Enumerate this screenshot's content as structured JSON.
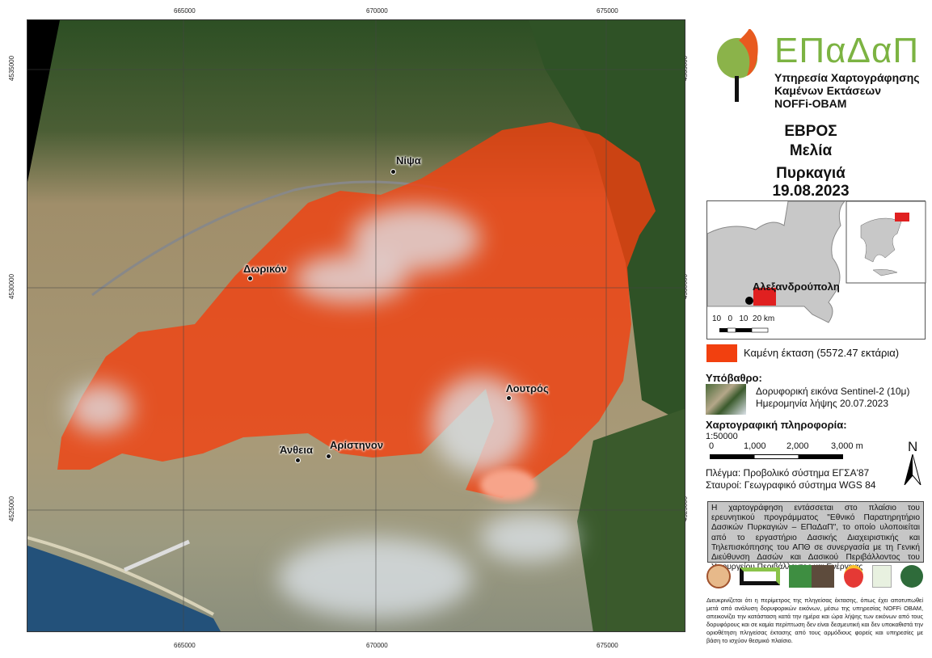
{
  "logo": {
    "name": "ΕΠαΔαΠ",
    "subtitle_lines": [
      "Υπηρεσία Χαρτογράφησης",
      "Καμένων Εκτάσεων",
      "NOFFi-OBAM"
    ]
  },
  "header": {
    "region": "ΕΒΡΟΣ",
    "area": "Μελία",
    "event": "Πυρκαγιά",
    "date": "19.08.2023"
  },
  "locator": {
    "city": "Αλεξανδρούπολη",
    "scale_labels": "10   0   10  20 km"
  },
  "legend": {
    "burned_label": "Καμένη έκταση (5572.47 εκτάρια)",
    "burned_color": "#f2400f"
  },
  "basemap": {
    "heading": "Υπόβαθρο:",
    "line1": "Δορυφορική εικόνα Sentinel-2 (10μ)",
    "line2": "Ημερομηνία λήψης 20.07.2023"
  },
  "carto": {
    "heading": "Χαρτογραφική πληροφορία:",
    "scale": "1:50000",
    "scalebar_labels": [
      "0",
      "1,000",
      "2,000",
      "3,000 m"
    ],
    "north": "N",
    "grid": "Πλέγμα: Προβολικό σύστημα ΕΓΣΑ'87",
    "graticule": "Σταυροί: Γεωγραφικό σύστημα WGS 84"
  },
  "note": "Η χαρτογράφηση εντάσσεται στο πλαίσιο του ερευνητικού προγράμματος \"Εθνικό Παρατηρητήριο Δασικών Πυρκαγιών – ΕΠαΔαΠ\", το οποίο υλοποιείται από το εργαστήριο Δασικής Διαχειριστικής και Τηλεπισκόπησης του ΑΠΘ σε συνεργασία με τη Γενική Διεύθυνση Δασών και Δασικού Περιβάλλοντος του Υπουργείου Περιβάλλοντος και Ενέργειας",
  "disclaimer": "Διευκρινίζεται ότι η περίμετρος της πληγείσας έκτασης, όπως έχει αποτυπωθεί μετά από ανάλυση δορυφορικών εικόνων, μέσω της υπηρεσίας NOFFi OBAM, απεικονίζει την κατάσταση κατά την ημέρα και ώρα λήψης των εικόνων από τους δορυφόρους και σε καμία περίπτωση δεν είναι δεσμευτική και δεν υποκαθιστά την οριοθέτηση πληγείσας έκτασης από τους αρμόδιους φορείς και υπηρεσίες με βάση το ισχύον θεσμικό πλαίσιο.",
  "coords": {
    "x": [
      "665000",
      "670000",
      "675000"
    ],
    "y": [
      "4535000",
      "4530000",
      "4525000"
    ]
  },
  "towns": [
    "Νίψα",
    "Δωρικόν",
    "Λουτρός",
    "Άνθεια",
    "Αρίστηνον"
  ]
}
